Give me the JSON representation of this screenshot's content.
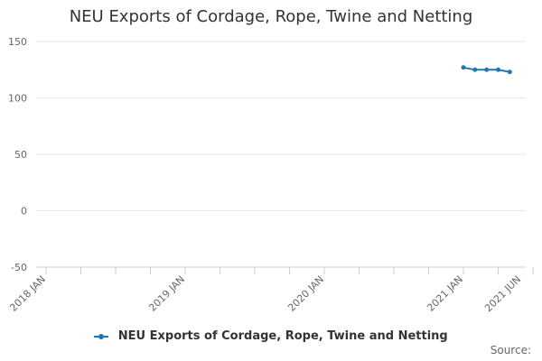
{
  "chart_data": {
    "type": "line",
    "title": "NEU Exports of Cordage, Rope, Twine and Netting",
    "xlabel": "",
    "ylabel": "",
    "ylim": [
      -50,
      150
    ],
    "y_ticks": [
      150,
      100,
      50,
      0,
      -50
    ],
    "x_range": [
      "2018-01",
      "2021-07"
    ],
    "x_tick_labels": [
      "2018 JAN",
      "2019 JAN",
      "2020 JAN",
      "2021 JAN",
      "2021 JUN"
    ],
    "x_tick_dates": [
      "2018-01",
      "2019-01",
      "2020-01",
      "2021-01",
      "2021-06"
    ],
    "series": [
      {
        "name": "NEU Exports of Cordage, Rope, Twine and Netting",
        "color": "#1f78b4",
        "points": [
          {
            "x": "2021-01",
            "y": 127
          },
          {
            "x": "2021-02",
            "y": 125
          },
          {
            "x": "2021-03",
            "y": 125
          },
          {
            "x": "2021-04",
            "y": 125
          },
          {
            "x": "2021-05",
            "y": 123
          }
        ]
      }
    ],
    "grid": true,
    "legend": "bottom-center",
    "source_label": "Source:"
  }
}
